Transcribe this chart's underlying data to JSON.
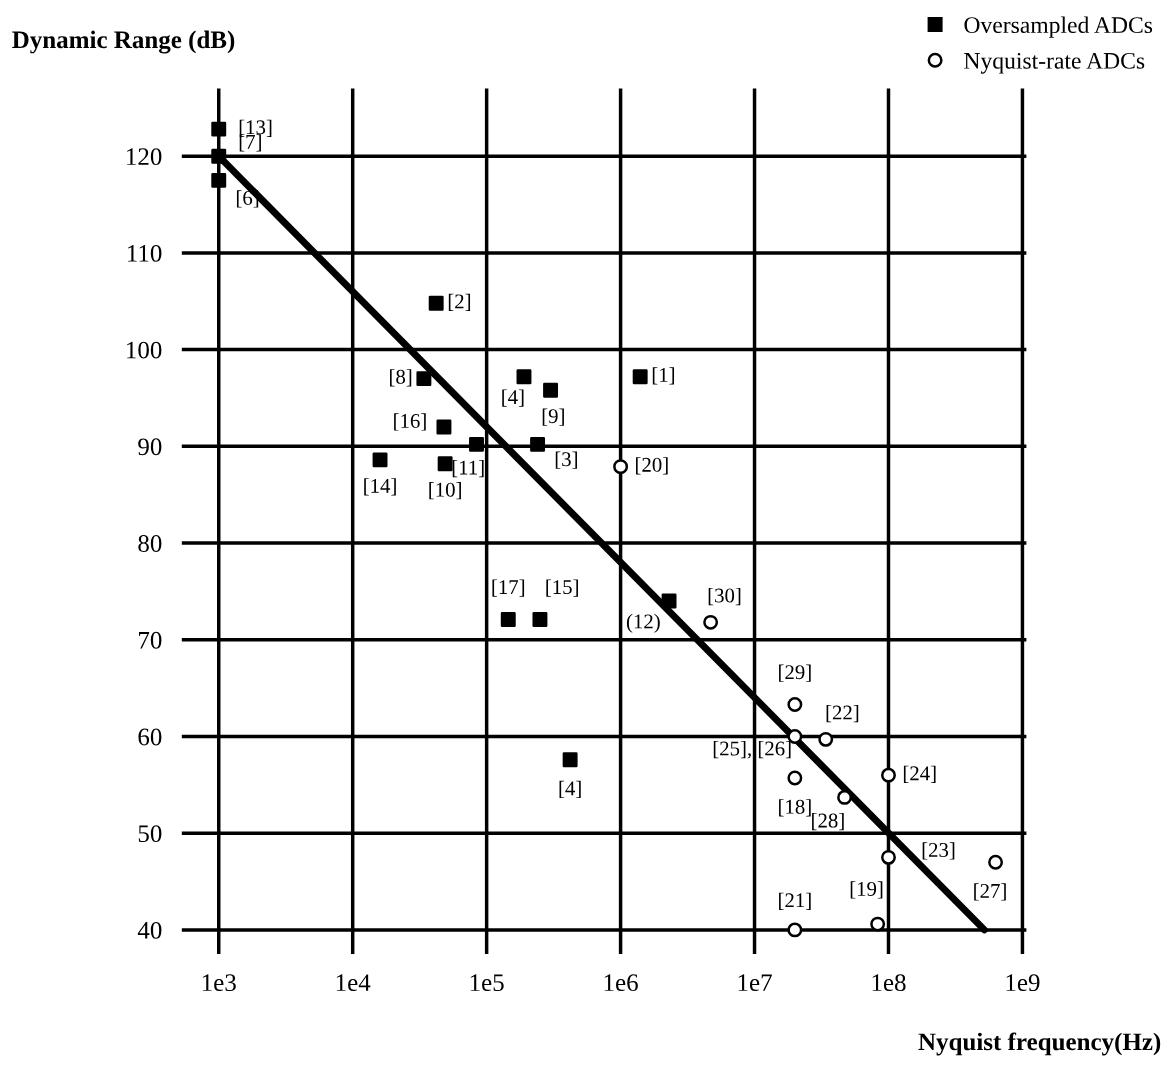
{
  "chart_data": {
    "type": "scatter",
    "xlabel": "Nyquist frequency(Hz)",
    "ylabel": "Dynamic Range (dB)",
    "log": "x",
    "xlim": [
      530,
      1070000000
    ],
    "ylim": [
      37.5,
      127
    ],
    "xticks": [
      {
        "value": 1000,
        "label": "1e3"
      },
      {
        "value": 10000,
        "label": "1e4"
      },
      {
        "value": 100000,
        "label": "1e5"
      },
      {
        "value": 1000000,
        "label": "1e6"
      },
      {
        "value": 10000000,
        "label": "1e7"
      },
      {
        "value": 100000000,
        "label": "1e8"
      },
      {
        "value": 1000000000,
        "label": "1e9"
      }
    ],
    "yticks": [
      40,
      50,
      60,
      70,
      80,
      90,
      100,
      110,
      120
    ],
    "grid": true,
    "legend": "top right",
    "series": [
      {
        "name": "Oversampled ADCs",
        "color": "#000000",
        "marker": "square",
        "x": [
          1000,
          1000,
          1000,
          42000,
          34000,
          190000,
          300000,
          1400000,
          48000,
          16000,
          49000,
          84000,
          240000,
          145000,
          250000,
          420000,
          2300000
        ],
        "values": [
          122.8,
          120,
          117.5,
          104.8,
          97,
          97.2,
          95.8,
          97.2,
          92,
          88.6,
          88.2,
          90.2,
          90.2,
          72.1,
          72.1,
          57.6,
          74
        ]
      },
      {
        "name": "Nyquist-rate ADCs",
        "color": "#000000",
        "marker": "circle",
        "x": [
          1000000,
          4700000,
          20000000,
          20000000,
          34000000,
          20000000,
          47000000,
          100000000,
          100000000,
          630000000,
          83000000,
          20000000
        ],
        "values": [
          87.9,
          71.8,
          63.3,
          60,
          59.7,
          55.7,
          53.7,
          56,
          47.5,
          47,
          40.6,
          40
        ]
      },
      {
        "type": "line",
        "color": "#000000",
        "marker": "none",
        "line_style": "solid",
        "x": [
          1000,
          520000000
        ],
        "values": [
          120,
          40
        ]
      }
    ],
    "annotations": [
      {
        "text": "[13]",
        "x": 1000,
        "y": 122.8
      },
      {
        "text": "[7]",
        "x": 1000,
        "y": 120
      },
      {
        "text": "[6]",
        "x": 1000,
        "y": 117.5
      },
      {
        "text": "[2]",
        "x": 42000,
        "y": 104.8
      },
      {
        "text": "[8]",
        "x": 34000,
        "y": 97
      },
      {
        "text": "[4]",
        "x": 190000,
        "y": 97.2
      },
      {
        "text": "[9]",
        "x": 300000,
        "y": 95.8
      },
      {
        "text": "[1]",
        "x": 1400000,
        "y": 97.2
      },
      {
        "text": "[16]",
        "x": 48000,
        "y": 92
      },
      {
        "text": "[14]",
        "x": 16000,
        "y": 88.6
      },
      {
        "text": "[10]",
        "x": 49000,
        "y": 88.2
      },
      {
        "text": "[11]",
        "x": 84000,
        "y": 90.2
      },
      {
        "text": "[3]",
        "x": 240000,
        "y": 90.2
      },
      {
        "text": "[17]",
        "x": 145000,
        "y": 72.1
      },
      {
        "text": "[15]",
        "x": 250000,
        "y": 72.1
      },
      {
        "text": "[4]",
        "x": 420000,
        "y": 57.6
      },
      {
        "text": "(12)",
        "x": 2300000,
        "y": 74
      },
      {
        "text": "[20]",
        "x": 1000000,
        "y": 87.9
      },
      {
        "text": "[30]",
        "x": 4700000,
        "y": 71.8
      },
      {
        "text": "[29]",
        "x": 20000000,
        "y": 63.3
      },
      {
        "text": "[25], [26]",
        "x": 20000000,
        "y": 60
      },
      {
        "text": "[22]",
        "x": 34000000,
        "y": 59.7
      },
      {
        "text": "[18]",
        "x": 20000000,
        "y": 55.7
      },
      {
        "text": "[28]",
        "x": 47000000,
        "y": 53.7
      },
      {
        "text": "[24]",
        "x": 100000000,
        "y": 56
      },
      {
        "text": "[23]",
        "x": 100000000,
        "y": 47.5
      },
      {
        "text": "[27]",
        "x": 630000000,
        "y": 47
      },
      {
        "text": "[19]",
        "x": 83000000,
        "y": 40.6
      },
      {
        "text": "[21]",
        "x": 20000000,
        "y": 40
      }
    ]
  }
}
